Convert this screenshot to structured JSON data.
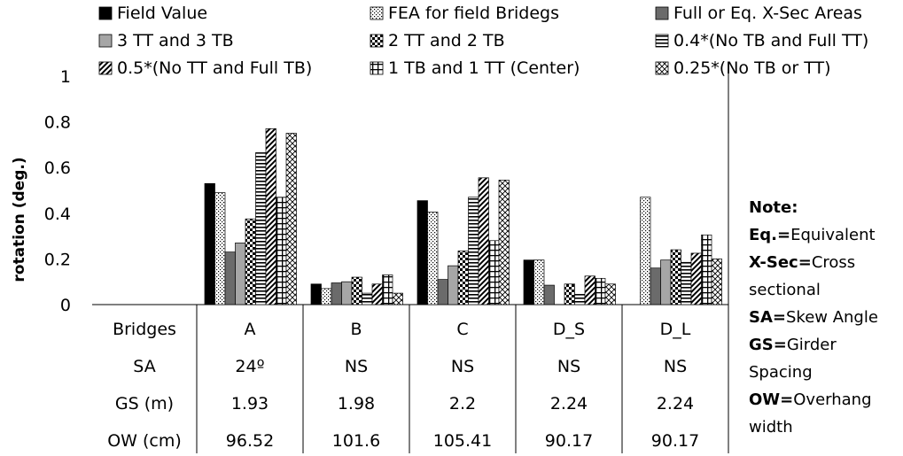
{
  "chart_data": {
    "type": "bar",
    "title": "",
    "xlabel": "",
    "ylabel": "rotation (deg.)",
    "ylim": [
      0,
      1
    ],
    "yticks": [
      "0",
      "0.2",
      "0.4",
      "0.6",
      "0.8",
      "1"
    ],
    "grid": false,
    "legend_position": "top",
    "categories": [
      "A",
      "B",
      "C",
      "D_S",
      "D_L"
    ],
    "series": [
      {
        "name": "Field Value",
        "values": [
          0.53,
          0.09,
          0.455,
          0.195,
          null
        ]
      },
      {
        "name": "FEA for field Bridegs",
        "values": [
          0.49,
          0.07,
          0.405,
          0.195,
          0.47
        ]
      },
      {
        "name": "Full or Eq. X-Sec Areas",
        "values": [
          0.23,
          0.095,
          0.11,
          0.085,
          0.16
        ]
      },
      {
        "name": "3 TT and 3 TB",
        "values": [
          0.27,
          0.1,
          0.17,
          null,
          0.195
        ]
      },
      {
        "name": "2 TT and 2 TB",
        "values": [
          0.375,
          0.12,
          0.235,
          0.09,
          0.24
        ]
      },
      {
        "name": "0.4*(No TB and Full TT)",
        "values": [
          0.665,
          0.05,
          0.47,
          0.045,
          0.185
        ]
      },
      {
        "name": "0.5*(No TT and Full TB)",
        "values": [
          0.77,
          0.09,
          0.555,
          0.125,
          0.225
        ]
      },
      {
        "name": "1 TB and 1 TT (Center)",
        "values": [
          0.47,
          0.13,
          0.28,
          0.115,
          0.305
        ]
      },
      {
        "name": "0.25*(No TB or TT)",
        "values": [
          0.75,
          0.05,
          0.545,
          0.09,
          0.2
        ]
      }
    ],
    "table": {
      "rows": [
        {
          "label": "Bridges",
          "values": [
            "A",
            "B",
            "C",
            "D_S",
            "D_L"
          ]
        },
        {
          "label": "SA",
          "values": [
            "24º",
            "NS",
            "NS",
            "NS",
            "NS"
          ]
        },
        {
          "label": "GS (m)",
          "values": [
            "1.93",
            "1.98",
            "2.2",
            "2.24",
            "2.24"
          ]
        },
        {
          "label": "OW (cm)",
          "values": [
            "96.52",
            "101.6",
            "105.41",
            "90.17",
            "90.17"
          ]
        }
      ]
    },
    "note": {
      "title": "Note:",
      "items": [
        {
          "key": "Eq.",
          "sep": "=",
          "text": "Equivalent"
        },
        {
          "key": "X-Sec",
          "sep": "=",
          "text": "Cross sectional"
        },
        {
          "key": "SA",
          "sep": "=",
          "text": "Skew Angle"
        },
        {
          "key": "GS",
          "sep": "=",
          "text": "Girder Spacing"
        },
        {
          "key": "OW",
          "sep": "=",
          "text": "Overhang width"
        }
      ]
    }
  }
}
